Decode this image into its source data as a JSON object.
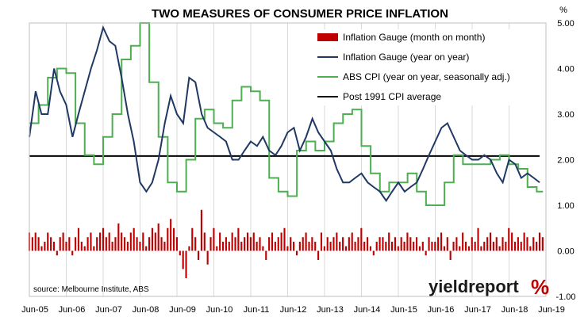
{
  "chart_data": {
    "type": "bar+line",
    "title": "TWO MEASURES OF CONSUMER PRICE INFLATION",
    "y_unit": "%",
    "ylim": [
      -1.0,
      5.0
    ],
    "yticks": [
      "5.00",
      "4.00",
      "3.00",
      "2.00",
      "1.00",
      "0.00",
      "-1.00"
    ],
    "xlim": [
      2005.5,
      2019.5
    ],
    "xticks": [
      "Jun-05",
      "Jun-06",
      "Jun-07",
      "Jun-08",
      "Jun-09",
      "Jun-10",
      "Jun-11",
      "Jun-12",
      "Jun-13",
      "Jun-14",
      "Jun-15",
      "Jun-16",
      "Jun-17",
      "Jun-18",
      "Jun-19"
    ],
    "grid": "vertical",
    "legend_position": "top-right",
    "source": "source: Melbourne Institute, ABS",
    "brand": {
      "text": "yieldreport",
      "symbol": "%"
    },
    "colors": {
      "bars": "#c00000",
      "gauge_yoy": "#1f3864",
      "abs_cpi": "#4caf50",
      "average": "#000000",
      "grid": "#d9d9d9"
    },
    "series": [
      {
        "name": "Inflation Gauge (month on month)",
        "kind": "bar",
        "start": 2005.5,
        "step": 0.0833,
        "values": [
          0.4,
          0.3,
          0.4,
          0.3,
          0.1,
          0.2,
          0.4,
          0.3,
          0.2,
          -0.1,
          0.3,
          0.4,
          0.2,
          0.3,
          -0.1,
          0.3,
          0.5,
          0.2,
          0.1,
          0.3,
          0.4,
          0.1,
          0.3,
          0.4,
          0.5,
          0.3,
          0.4,
          0.2,
          0.3,
          0.6,
          0.4,
          0.3,
          0.2,
          0.4,
          0.5,
          0.3,
          0.2,
          0.4,
          0.1,
          0.3,
          0.5,
          0.4,
          0.6,
          0.3,
          0.2,
          0.5,
          0.7,
          0.5,
          0.3,
          -0.1,
          -0.4,
          -0.6,
          0.1,
          0.5,
          0.3,
          -0.2,
          0.9,
          0.4,
          -0.3,
          0.3,
          0.5,
          0.1,
          0.4,
          0.2,
          0.3,
          0.2,
          0.4,
          0.3,
          0.5,
          0.2,
          0.3,
          0.4,
          0.3,
          0.4,
          0.2,
          0.3,
          0.1,
          -0.2,
          0.3,
          0.4,
          0.2,
          0.3,
          0.4,
          0.5,
          0.1,
          0.3,
          0.2,
          -0.1,
          0.2,
          0.3,
          0.4,
          0.2,
          0.3,
          0.2,
          -0.2,
          0.4,
          0.1,
          0.3,
          0.2,
          0.3,
          0.4,
          0.2,
          0.3,
          0.1,
          0.3,
          0.4,
          0.2,
          0.3,
          0.5,
          0.2,
          0.3,
          0.1,
          -0.1,
          0.2,
          0.3,
          0.3,
          0.2,
          0.4,
          0.2,
          0.3,
          0.1,
          0.3,
          0.2,
          0.4,
          0.3,
          0.2,
          0.3,
          0.1,
          0.2,
          -0.1,
          0.3,
          0.2,
          0.2,
          0.3,
          0.4,
          0.1,
          0.3,
          -0.2,
          0.2,
          0.3,
          0.1,
          0.4,
          0.2,
          0.1,
          0.3,
          0.2,
          0.5,
          0.1,
          0.2,
          0.3,
          0.4,
          0.2,
          0.3,
          0.1,
          0.3,
          0.2,
          0.5,
          0.4,
          0.2,
          0.3,
          0.2,
          0.4,
          0.3,
          0.1,
          0.3,
          0.2,
          0.4,
          0.3,
          0.2,
          0.3,
          0.2,
          -0.1,
          0.3,
          0.2,
          0.1,
          0.4,
          0.3,
          0.2
        ],
        "color": "#c00000"
      },
      {
        "name": "Inflation Gauge (year on year)",
        "kind": "line",
        "x": [
          2005.5,
          2005.67,
          2005.83,
          2006.0,
          2006.17,
          2006.33,
          2006.5,
          2006.67,
          2006.83,
          2007.0,
          2007.17,
          2007.33,
          2007.5,
          2007.67,
          2007.83,
          2008.0,
          2008.17,
          2008.33,
          2008.5,
          2008.67,
          2008.83,
          2009.0,
          2009.17,
          2009.33,
          2009.5,
          2009.67,
          2009.83,
          2010.0,
          2010.17,
          2010.33,
          2010.5,
          2010.67,
          2010.83,
          2011.0,
          2011.17,
          2011.33,
          2011.5,
          2011.67,
          2011.83,
          2012.0,
          2012.17,
          2012.33,
          2012.5,
          2012.67,
          2012.83,
          2013.0,
          2013.17,
          2013.33,
          2013.5,
          2013.67,
          2013.83,
          2014.0,
          2014.17,
          2014.33,
          2014.5,
          2014.67,
          2014.83,
          2015.0,
          2015.17,
          2015.33,
          2015.5,
          2015.67,
          2015.83,
          2016.0,
          2016.17,
          2016.33,
          2016.5,
          2016.67,
          2016.83,
          2017.0,
          2017.17,
          2017.33,
          2017.5,
          2017.67,
          2017.83,
          2018.0,
          2018.17,
          2018.33,
          2018.5,
          2018.67,
          2018.83,
          2019.0,
          2019.17,
          2019.33
        ],
        "y": [
          2.5,
          3.5,
          3.0,
          3.0,
          4.0,
          3.5,
          3.2,
          2.5,
          3.0,
          3.5,
          4.0,
          4.4,
          4.9,
          4.6,
          4.5,
          3.8,
          3.0,
          2.4,
          1.5,
          1.3,
          1.5,
          2.0,
          2.8,
          3.4,
          3.0,
          2.8,
          3.8,
          3.7,
          3.0,
          2.7,
          2.6,
          2.5,
          2.4,
          2.0,
          2.0,
          2.2,
          2.4,
          2.3,
          2.5,
          2.2,
          2.1,
          2.3,
          2.6,
          2.7,
          2.2,
          2.5,
          2.9,
          2.6,
          2.4,
          2.2,
          1.8,
          1.5,
          1.5,
          1.6,
          1.7,
          1.5,
          1.4,
          1.3,
          1.1,
          1.3,
          1.5,
          1.3,
          1.4,
          1.5,
          1.8,
          2.1,
          2.4,
          2.7,
          2.8,
          2.5,
          2.2,
          2.1,
          2.0,
          2.0,
          2.1,
          2.0,
          1.7,
          1.5,
          2.0,
          1.9,
          1.6,
          1.7,
          1.6,
          1.5
        ],
        "color": "#1f3864"
      },
      {
        "name": "ABS CPI (year on year, seasonally adj.)",
        "kind": "step",
        "x": [
          2005.5,
          2005.75,
          2006.0,
          2006.25,
          2006.5,
          2006.75,
          2007.0,
          2007.25,
          2007.5,
          2007.75,
          2008.0,
          2008.25,
          2008.5,
          2008.75,
          2009.0,
          2009.25,
          2009.5,
          2009.75,
          2010.0,
          2010.25,
          2010.5,
          2010.75,
          2011.0,
          2011.25,
          2011.5,
          2011.75,
          2012.0,
          2012.25,
          2012.5,
          2012.75,
          2013.0,
          2013.25,
          2013.5,
          2013.75,
          2014.0,
          2014.25,
          2014.5,
          2014.75,
          2015.0,
          2015.25,
          2015.5,
          2015.75,
          2016.0,
          2016.25,
          2016.5,
          2016.75,
          2017.0,
          2017.25,
          2017.5,
          2017.75,
          2018.0,
          2018.25,
          2018.5,
          2018.75,
          2019.0,
          2019.25
        ],
        "y": [
          2.8,
          3.2,
          3.8,
          4.0,
          3.9,
          2.8,
          2.1,
          1.9,
          2.5,
          3.0,
          4.2,
          4.5,
          5.0,
          3.7,
          2.5,
          1.5,
          1.3,
          2.0,
          2.9,
          3.1,
          2.8,
          2.7,
          3.3,
          3.6,
          3.5,
          3.3,
          1.6,
          1.3,
          1.2,
          2.2,
          2.4,
          2.2,
          2.4,
          2.8,
          3.0,
          3.1,
          2.3,
          1.7,
          1.3,
          1.5,
          1.5,
          1.7,
          1.3,
          1.0,
          1.0,
          1.5,
          2.1,
          1.9,
          1.9,
          1.9,
          2.0,
          2.1,
          1.9,
          1.8,
          1.4,
          1.3
        ],
        "color": "#4caf50"
      },
      {
        "name": "Post 1991 CPI average",
        "kind": "hline",
        "value": 2.08,
        "color": "#000000"
      }
    ]
  }
}
